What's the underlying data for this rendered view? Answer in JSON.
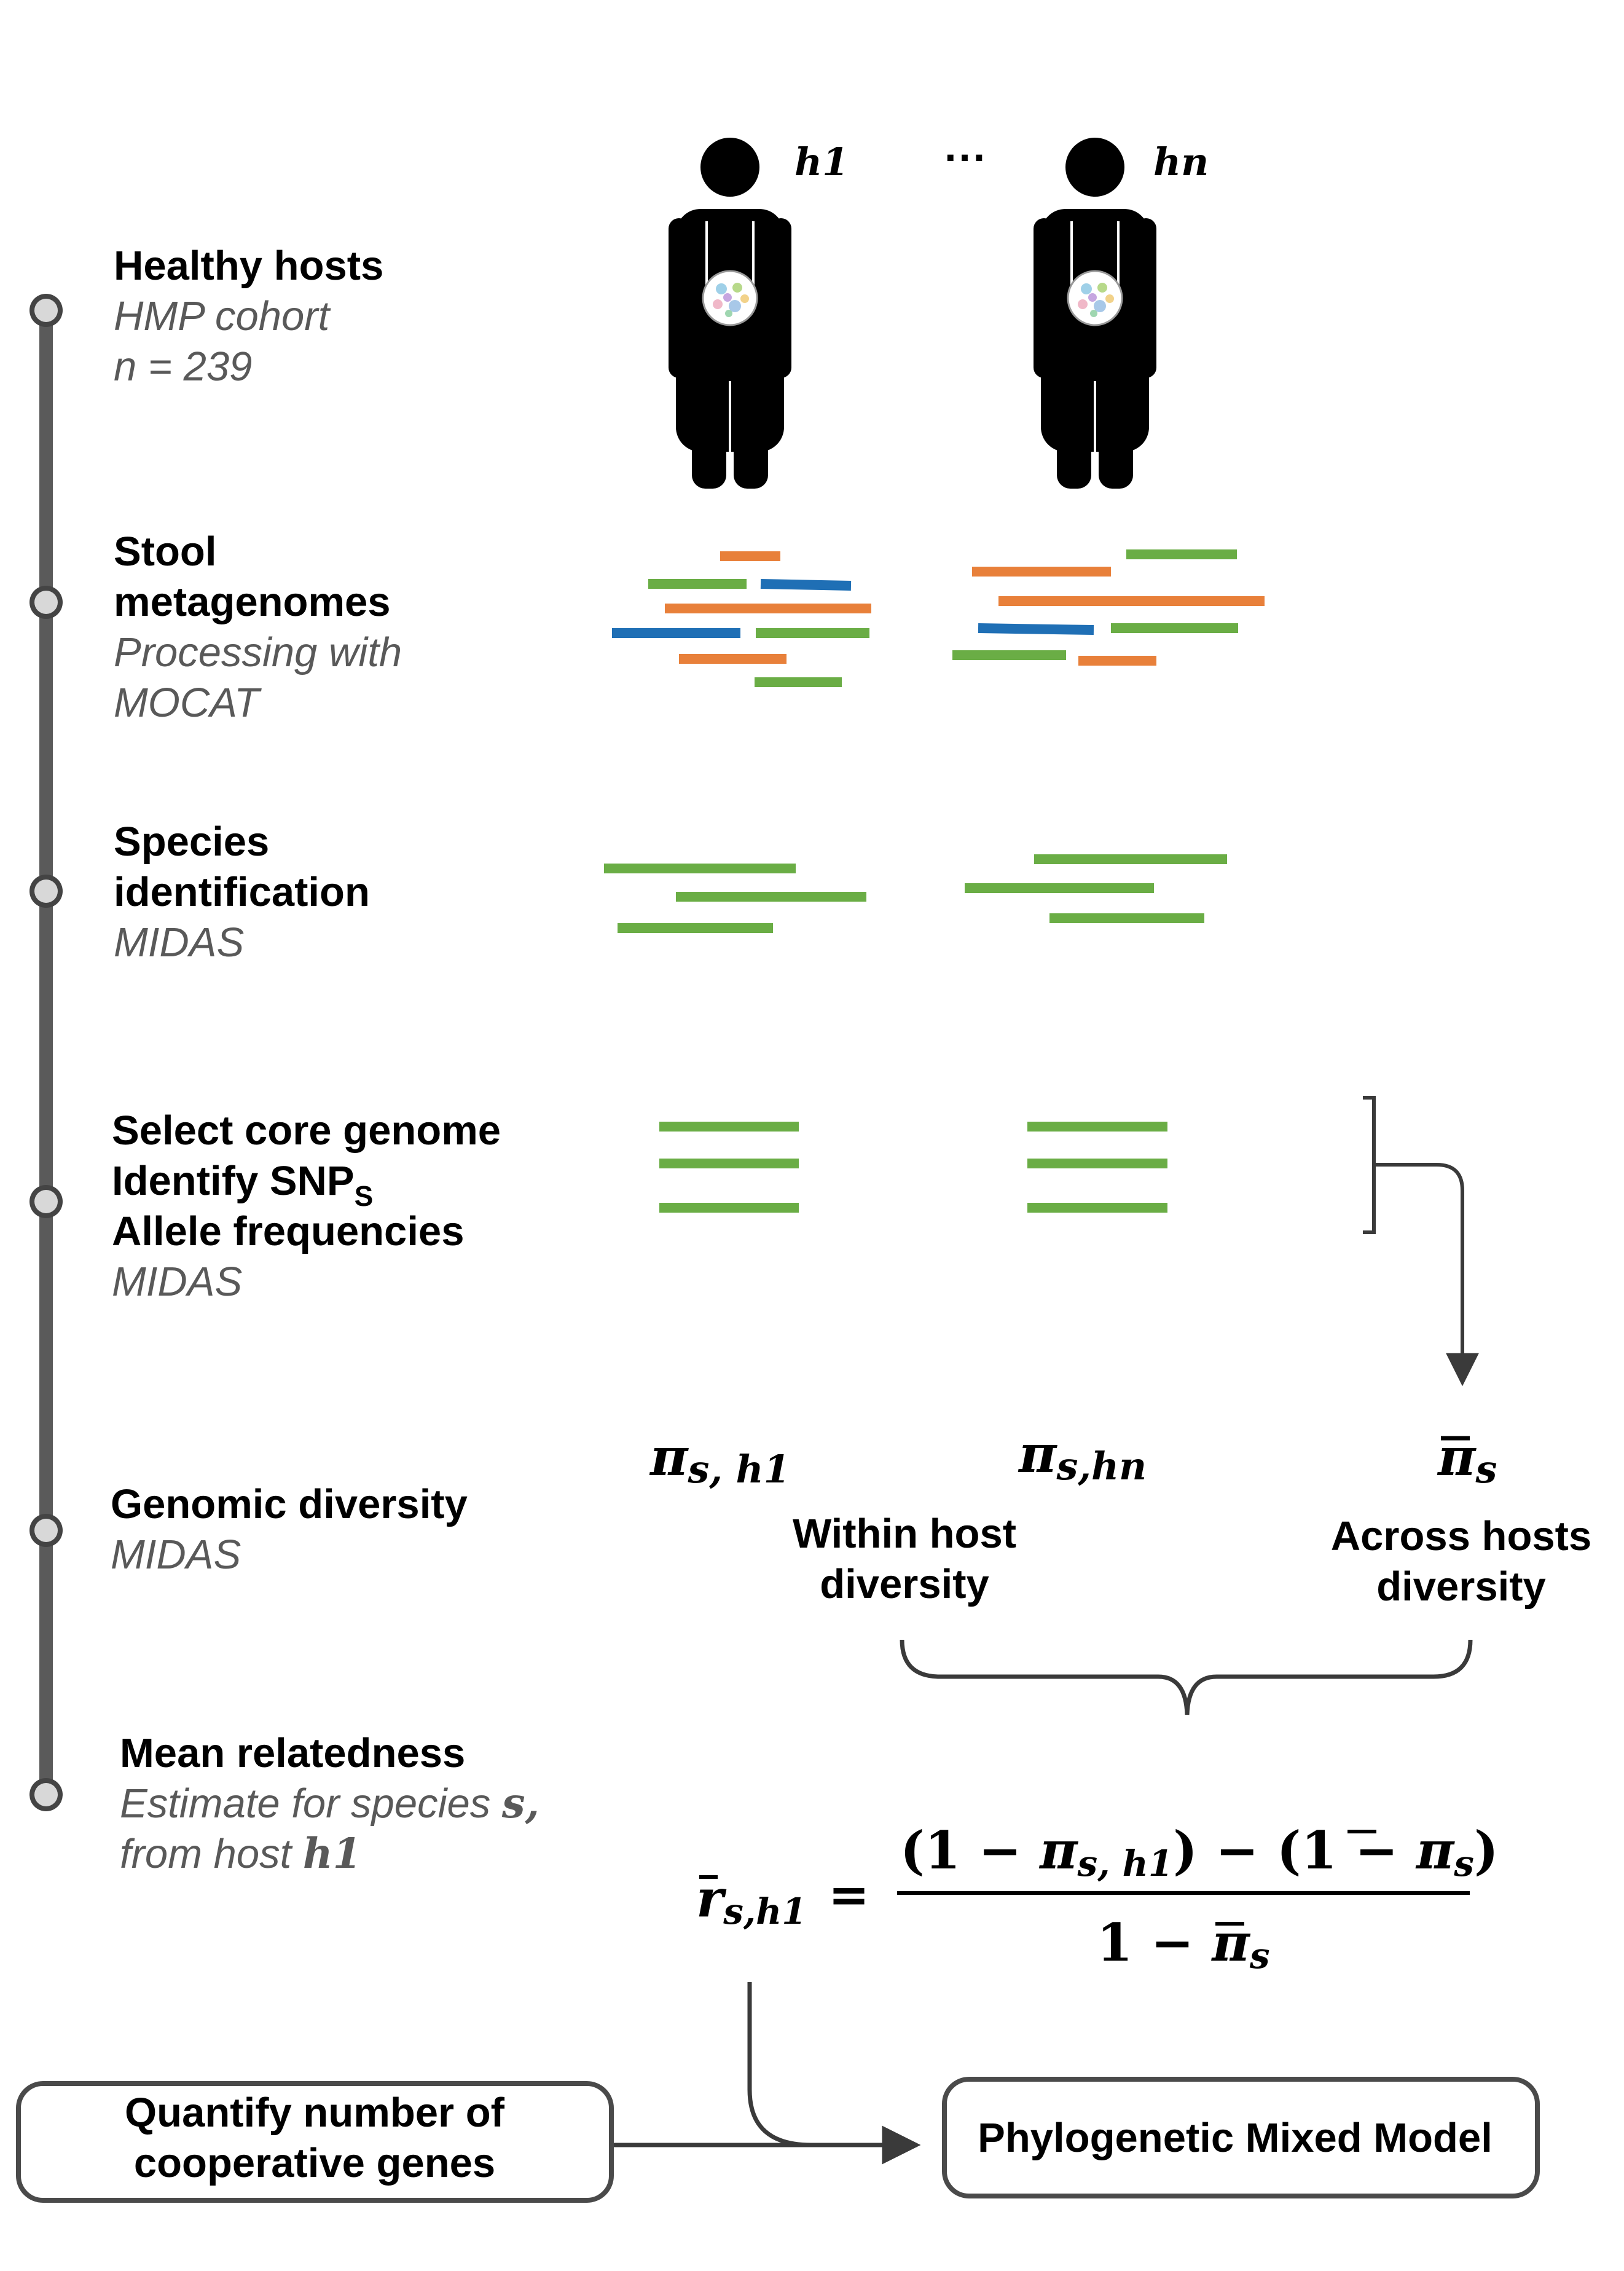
{
  "hosts": {
    "first_label": "h1",
    "ellipsis": "···",
    "last_label": "hn"
  },
  "steps": [
    {
      "title_lines": [
        "Healthy hosts"
      ],
      "sub_lines": [
        "HMP cohort",
        "n = 239"
      ]
    },
    {
      "title_lines": [
        "Stool",
        "metagenomes"
      ],
      "sub_lines": [
        "Processing with",
        "MOCAT"
      ]
    },
    {
      "title_lines": [
        "Species",
        "identification"
      ],
      "sub_lines": [
        "MIDAS"
      ]
    },
    {
      "title_lines": [
        "Select core genome",
        "Identify SNP",
        "Allele frequencies"
      ],
      "snp_subscript": "S",
      "sub_lines": [
        "MIDAS"
      ]
    },
    {
      "title_lines": [
        "Genomic diversity"
      ],
      "sub_lines": [
        "MIDAS"
      ]
    },
    {
      "title_lines": [
        "Mean relatedness"
      ],
      "sub_lines": [
        "Estimate for species ",
        "from host "
      ],
      "sub_vars": [
        "s,",
        "h1"
      ]
    }
  ],
  "diversity": {
    "pi_symbol": "π",
    "pi_h1_sub": "s, h1",
    "pi_hn_sub": "s,hn",
    "pi_bar_sub": "s",
    "within_lines": [
      "Within host",
      "diversity"
    ],
    "across_lines": [
      "Across hosts",
      "diversity"
    ]
  },
  "formula": {
    "lhs_var": "r",
    "lhs_sub": "s,h1",
    "equals": "=",
    "numerator_parts": [
      "(1 − ",
      "π",
      "s, h1",
      ") − (1 − ",
      "π",
      "s",
      ")"
    ],
    "denominator_parts": [
      "1  − ",
      "π",
      "s"
    ]
  },
  "boxes": {
    "left_lines": [
      "Quantify number of",
      "cooperative genes"
    ],
    "right": "Phylogenetic Mixed Model"
  },
  "colors": {
    "timeline": "#5a5a5a",
    "green": "#6aad45",
    "orange": "#e8803a",
    "blue": "#1f6fb5",
    "connector": "#3a3a3a"
  }
}
